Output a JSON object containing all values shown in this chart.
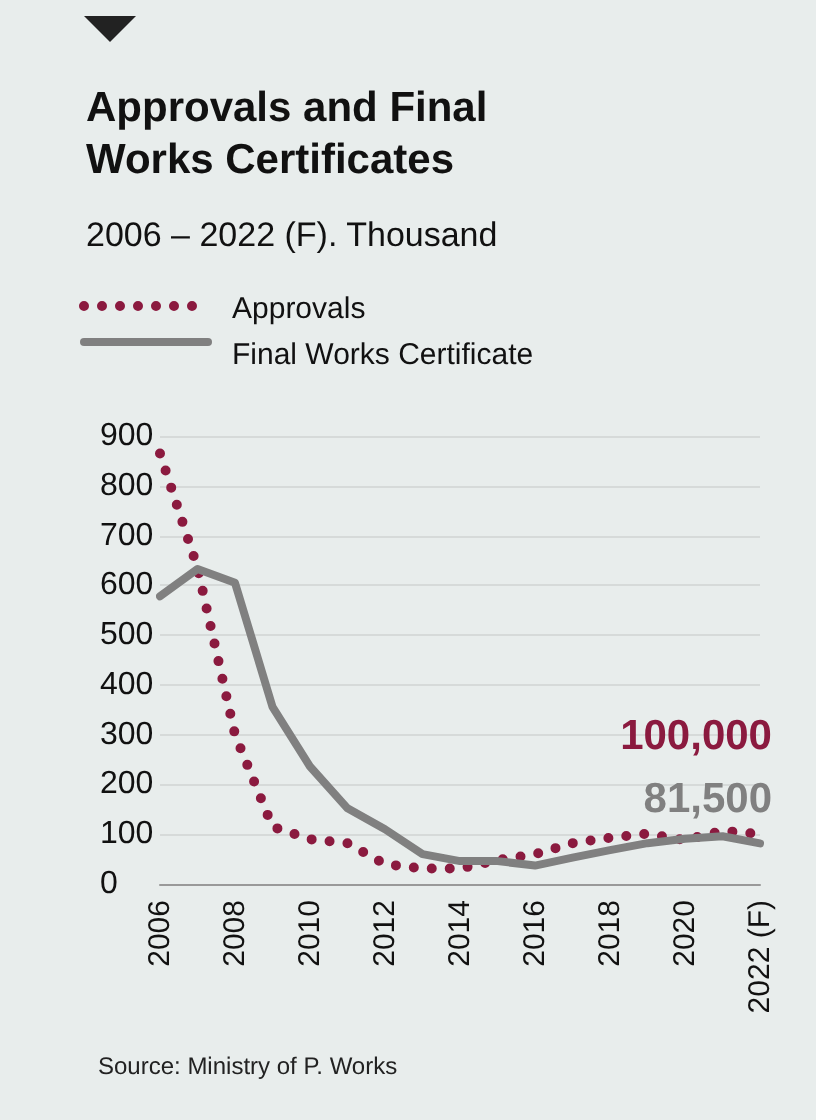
{
  "chart_data": {
    "type": "line",
    "title": "Approvals and Final Works Certificates",
    "subtitle": "2006 – 2022 (F). Thousand",
    "categories": [
      "2006",
      null,
      "2008",
      null,
      "2010",
      null,
      "2012",
      null,
      "2014",
      null,
      "2016",
      null,
      "2018",
      null,
      "2020",
      null,
      "2022 (F)"
    ],
    "series": [
      {
        "name": "Approvals",
        "color": "#8b1a3f",
        "line_style": "dotted",
        "values": [
          865,
          635,
          300,
          115,
          90,
          82,
          40,
          31,
          31,
          48,
          60,
          82,
          93,
          101,
          88,
          107,
          100
        ]
      },
      {
        "name": "Final Works Certificate",
        "color": "#808080",
        "line_style": "solid",
        "values": [
          578,
          633,
          605,
          356,
          236,
          152,
          110,
          60,
          46,
          46,
          37,
          53,
          68,
          82,
          91,
          96,
          81.5
        ]
      }
    ],
    "ylim": [
      0,
      900
    ],
    "yticks": [
      0,
      100,
      200,
      300,
      400,
      500,
      600,
      700,
      800,
      900
    ],
    "grid": "y",
    "legend": "top left",
    "marker": "none",
    "annotations": [
      {
        "text": "100,000",
        "x": "2022 (F)",
        "y": 100
      },
      {
        "text": "81,500",
        "x": "2022 (F)",
        "y": 81.5
      },
      "Source: Ministry of P. Works"
    ]
  }
}
